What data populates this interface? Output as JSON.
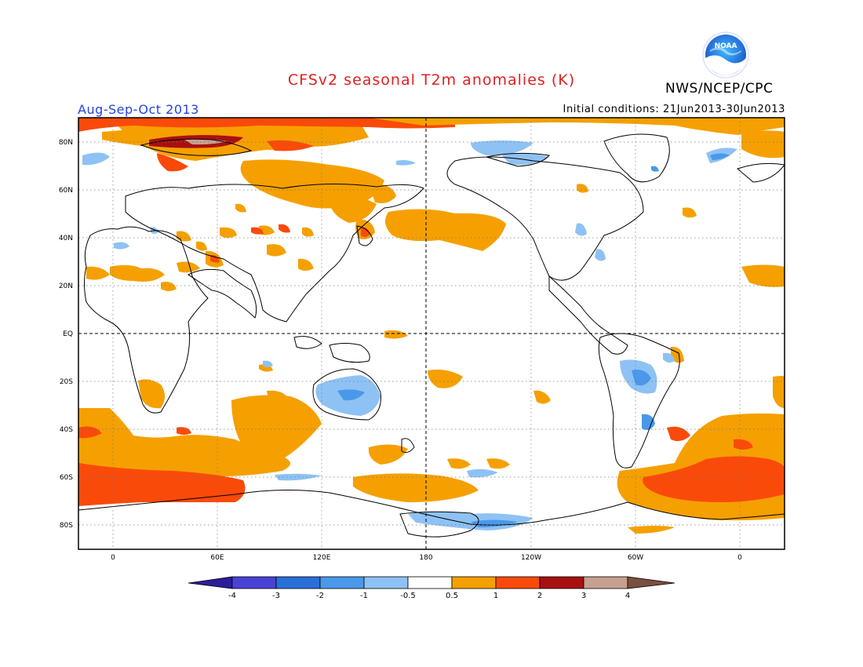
{
  "header": {
    "title": "CFSv2 seasonal T2m anomalies (K)",
    "agency": "NWS/NCEP/CPC",
    "season": "Aug-Sep-Oct 2013",
    "initial_conditions": "Initial conditions: 21Jun2013-30Jun2013",
    "logo_text": "NOAA"
  },
  "map": {
    "lat_labels": [
      "80N",
      "60N",
      "40N",
      "20N",
      "EQ",
      "20S",
      "40S",
      "60S",
      "80S"
    ],
    "lon_labels": [
      "0",
      "60E",
      "120E",
      "180",
      "120W",
      "60W",
      "0"
    ]
  },
  "colorbar": {
    "labels": [
      "-4",
      "-3",
      "-2",
      "-1",
      "-0.5",
      "0.5",
      "1",
      "2",
      "3",
      "4"
    ],
    "colors": [
      "#2d1d9a",
      "#4a41d6",
      "#2a6fd8",
      "#4a98ea",
      "#8ec2f4",
      "#ffffff",
      "#f5a000",
      "#fa4a0a",
      "#a81010",
      "#c8a090",
      "#7a5040"
    ]
  },
  "colors": {
    "positive_light": "#f5a000",
    "positive_mid": "#fa4a0a",
    "positive_strong": "#a81010",
    "negative_light": "#8ec2f4",
    "negative_mid": "#4a98ea",
    "negative_strong": "#2a6fd8"
  }
}
